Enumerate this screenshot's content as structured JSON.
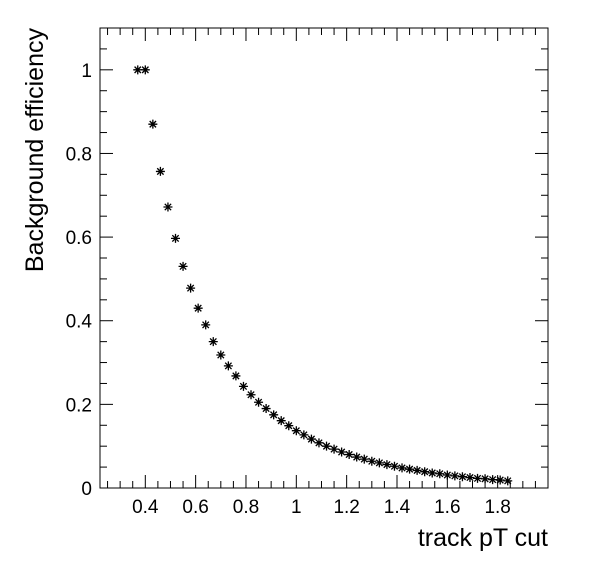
{
  "chart_data": {
    "type": "scatter",
    "title": "",
    "xlabel": "track pT cut",
    "ylabel": "Background efficiency",
    "xlim": [
      0.22,
      2.0
    ],
    "ylim": [
      0,
      1.1
    ],
    "x_major_ticks": [
      0.4,
      0.6,
      0.8,
      1.0,
      1.2,
      1.4,
      1.6,
      1.8
    ],
    "x_tick_labels": [
      "0.4",
      "0.6",
      "0.8",
      "1",
      "1.2",
      "1.4",
      "1.6",
      "1.8"
    ],
    "y_major_ticks": [
      0,
      0.2,
      0.4,
      0.6,
      0.8,
      1.0
    ],
    "y_tick_labels": [
      "0",
      "0.2",
      "0.4",
      "0.6",
      "0.8",
      "1"
    ],
    "grid": false,
    "marker": "asterisk",
    "color": "#000000",
    "x": [
      0.37,
      0.4,
      0.43,
      0.46,
      0.49,
      0.52,
      0.55,
      0.58,
      0.61,
      0.64,
      0.67,
      0.7,
      0.73,
      0.76,
      0.79,
      0.82,
      0.85,
      0.88,
      0.91,
      0.94,
      0.97,
      1.0,
      1.03,
      1.06,
      1.09,
      1.12,
      1.15,
      1.18,
      1.21,
      1.24,
      1.27,
      1.3,
      1.33,
      1.36,
      1.39,
      1.42,
      1.45,
      1.48,
      1.51,
      1.54,
      1.57,
      1.6,
      1.63,
      1.66,
      1.69,
      1.72,
      1.75,
      1.78,
      1.81,
      1.84
    ],
    "y": [
      1.0,
      1.0,
      0.87,
      0.757,
      0.672,
      0.597,
      0.53,
      0.478,
      0.43,
      0.39,
      0.35,
      0.318,
      0.292,
      0.268,
      0.243,
      0.223,
      0.205,
      0.19,
      0.175,
      0.161,
      0.149,
      0.137,
      0.127,
      0.117,
      0.108,
      0.1,
      0.093,
      0.086,
      0.08,
      0.074,
      0.069,
      0.064,
      0.06,
      0.056,
      0.052,
      0.048,
      0.045,
      0.042,
      0.039,
      0.036,
      0.034,
      0.031,
      0.029,
      0.027,
      0.025,
      0.023,
      0.022,
      0.02,
      0.019,
      0.017
    ]
  }
}
